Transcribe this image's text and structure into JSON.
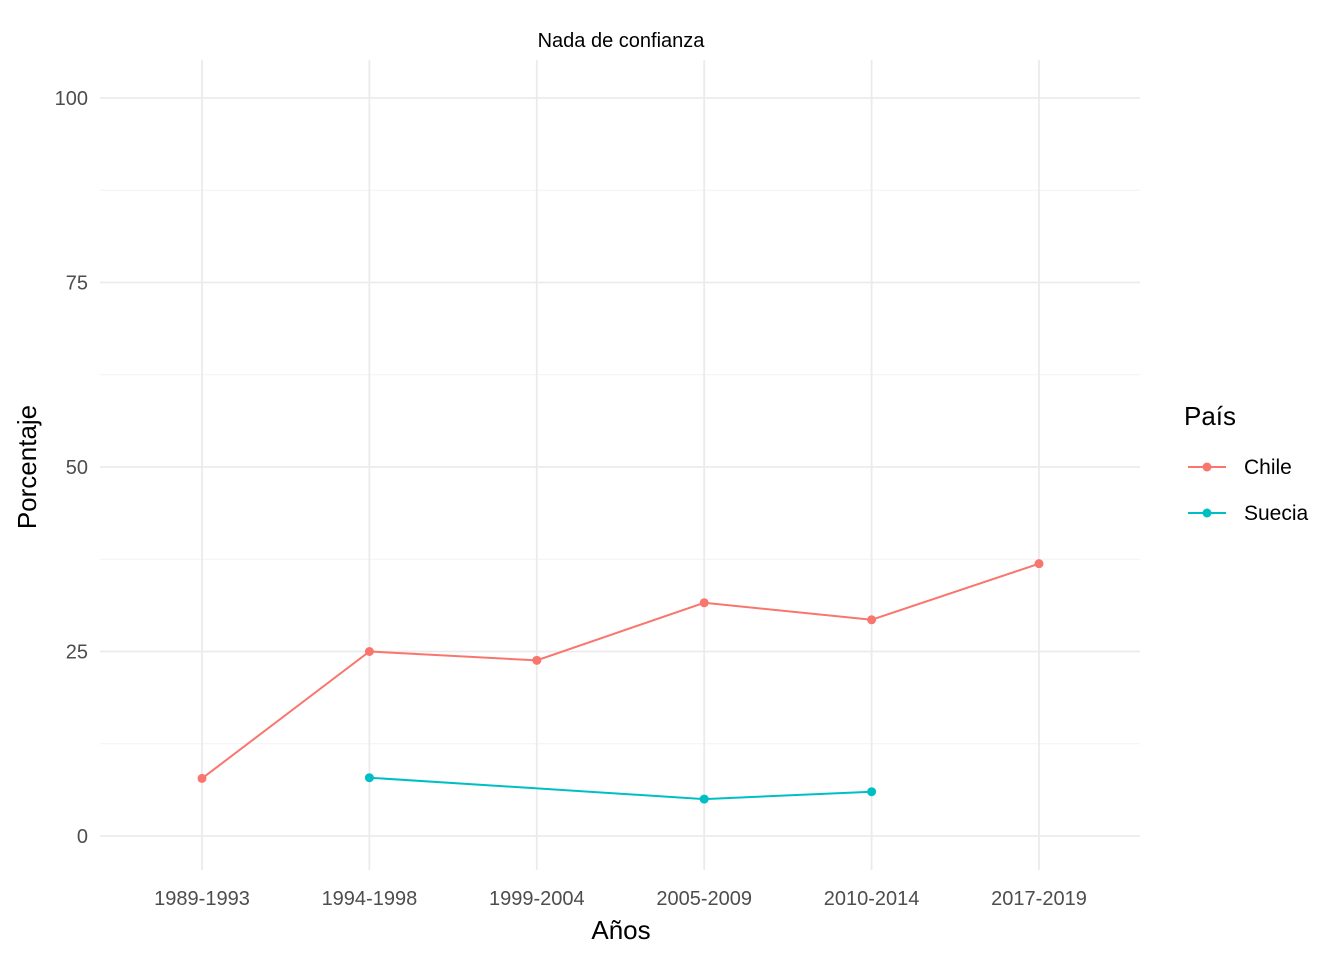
{
  "chart_data": {
    "type": "line",
    "title": "Nada de confianza",
    "xlabel": "Años",
    "ylabel": "Porcentaje",
    "categories": [
      "1989-1993",
      "1994-1998",
      "1999-2004",
      "2005-2009",
      "2010-2014",
      "2017-2019"
    ],
    "ylim": [
      -4,
      105
    ],
    "yticks": [
      0,
      25,
      50,
      75,
      100
    ],
    "grid": true,
    "legend": {
      "title": "País",
      "position": "right"
    },
    "series": [
      {
        "name": "Chile",
        "color": "#F8766D",
        "values": [
          7.8,
          25.0,
          23.8,
          31.6,
          29.3,
          36.9
        ]
      },
      {
        "name": "Suecia",
        "color": "#00BFC4",
        "values": [
          null,
          7.9,
          null,
          5.0,
          6.0,
          null
        ]
      }
    ]
  }
}
